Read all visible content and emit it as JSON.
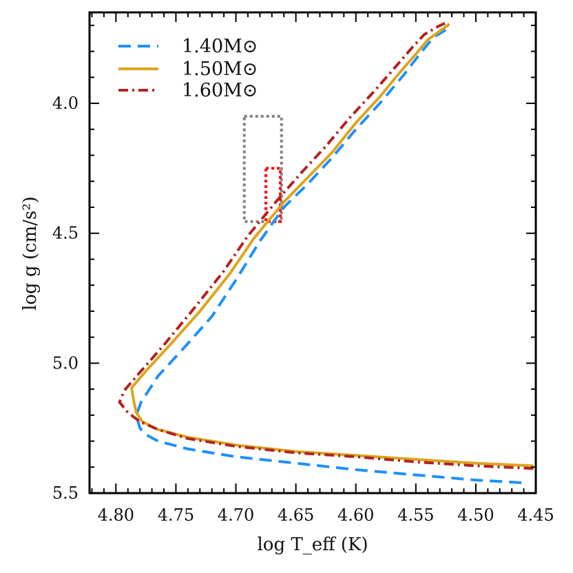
{
  "chart_data": {
    "type": "line",
    "xlabel": "log T_eff (K)",
    "ylabel": "log g (cm/s²)",
    "xlim": [
      4.822,
      4.45
    ],
    "ylim": [
      5.5,
      3.65
    ],
    "x_inverted": true,
    "y_inverted": true,
    "xticks": [
      "4.80",
      "4.75",
      "4.70",
      "4.65",
      "4.60",
      "4.55",
      "4.50",
      "4.45"
    ],
    "yticks": [
      "4.0",
      "4.5",
      "5.0",
      "5.5"
    ],
    "grid": false,
    "legend_position": "top-left",
    "series": [
      {
        "name": "1.40M⊙",
        "color": "#1e90ff",
        "linestyle": "dashed",
        "points": [
          [
            4.462,
            5.46
          ],
          [
            4.5,
            5.45
          ],
          [
            4.55,
            5.43
          ],
          [
            4.6,
            5.41
          ],
          [
            4.65,
            5.385
          ],
          [
            4.7,
            5.36
          ],
          [
            4.74,
            5.33
          ],
          [
            4.765,
            5.3
          ],
          [
            4.775,
            5.275
          ],
          [
            4.78,
            5.25
          ],
          [
            4.783,
            5.2
          ],
          [
            4.779,
            5.15
          ],
          [
            4.765,
            5.05
          ],
          [
            4.745,
            4.95
          ],
          [
            4.72,
            4.82
          ],
          [
            4.7,
            4.68
          ],
          [
            4.68,
            4.53
          ],
          [
            4.66,
            4.4
          ],
          [
            4.64,
            4.31
          ],
          [
            4.62,
            4.21
          ],
          [
            4.6,
            4.1
          ],
          [
            4.58,
            4.0
          ],
          [
            4.56,
            3.89
          ],
          [
            4.545,
            3.8
          ],
          [
            4.535,
            3.745
          ],
          [
            4.526,
            3.72
          ],
          [
            4.522,
            3.71
          ]
        ]
      },
      {
        "name": "1.50M⊙",
        "color": "#daa520",
        "linestyle": "solid",
        "points": [
          [
            4.452,
            5.395
          ],
          [
            4.5,
            5.385
          ],
          [
            4.55,
            5.37
          ],
          [
            4.6,
            5.355
          ],
          [
            4.65,
            5.34
          ],
          [
            4.7,
            5.315
          ],
          [
            4.74,
            5.285
          ],
          [
            4.765,
            5.255
          ],
          [
            4.778,
            5.225
          ],
          [
            4.783,
            5.19
          ],
          [
            4.785,
            5.15
          ],
          [
            4.787,
            5.095
          ],
          [
            4.775,
            5.03
          ],
          [
            4.755,
            4.93
          ],
          [
            4.73,
            4.8
          ],
          [
            4.705,
            4.655
          ],
          [
            4.685,
            4.52
          ],
          [
            4.66,
            4.38
          ],
          [
            4.64,
            4.285
          ],
          [
            4.62,
            4.19
          ],
          [
            4.6,
            4.075
          ],
          [
            4.58,
            3.975
          ],
          [
            4.565,
            3.89
          ],
          [
            4.55,
            3.81
          ],
          [
            4.54,
            3.755
          ],
          [
            4.528,
            3.715
          ],
          [
            4.522,
            3.695
          ]
        ]
      },
      {
        "name": "1.60M⊙",
        "color": "#b22222",
        "linestyle": "dashdot",
        "points": [
          [
            4.452,
            5.405
          ],
          [
            4.5,
            5.395
          ],
          [
            4.55,
            5.38
          ],
          [
            4.6,
            5.36
          ],
          [
            4.65,
            5.345
          ],
          [
            4.7,
            5.32
          ],
          [
            4.74,
            5.29
          ],
          [
            4.765,
            5.255
          ],
          [
            4.78,
            5.225
          ],
          [
            4.79,
            5.19
          ],
          [
            4.797,
            5.15
          ],
          [
            4.793,
            5.105
          ],
          [
            4.78,
            5.035
          ],
          [
            4.76,
            4.93
          ],
          [
            4.735,
            4.79
          ],
          [
            4.71,
            4.645
          ],
          [
            4.69,
            4.51
          ],
          [
            4.665,
            4.37
          ],
          [
            4.645,
            4.265
          ],
          [
            4.625,
            4.165
          ],
          [
            4.605,
            4.055
          ],
          [
            4.585,
            3.955
          ],
          [
            4.568,
            3.865
          ],
          [
            4.553,
            3.785
          ],
          [
            4.543,
            3.735
          ],
          [
            4.532,
            3.705
          ],
          [
            4.525,
            3.69
          ]
        ]
      }
    ],
    "annotations": [
      {
        "type": "rect",
        "color": "#808080",
        "style": "dotted",
        "x_range": [
          4.693,
          4.662
        ],
        "y_range": [
          4.05,
          4.455
        ]
      },
      {
        "type": "rect",
        "color": "#ff0000",
        "style": "dotted",
        "x_range": [
          4.675,
          4.663
        ],
        "y_range": [
          4.25,
          4.455
        ]
      }
    ]
  }
}
